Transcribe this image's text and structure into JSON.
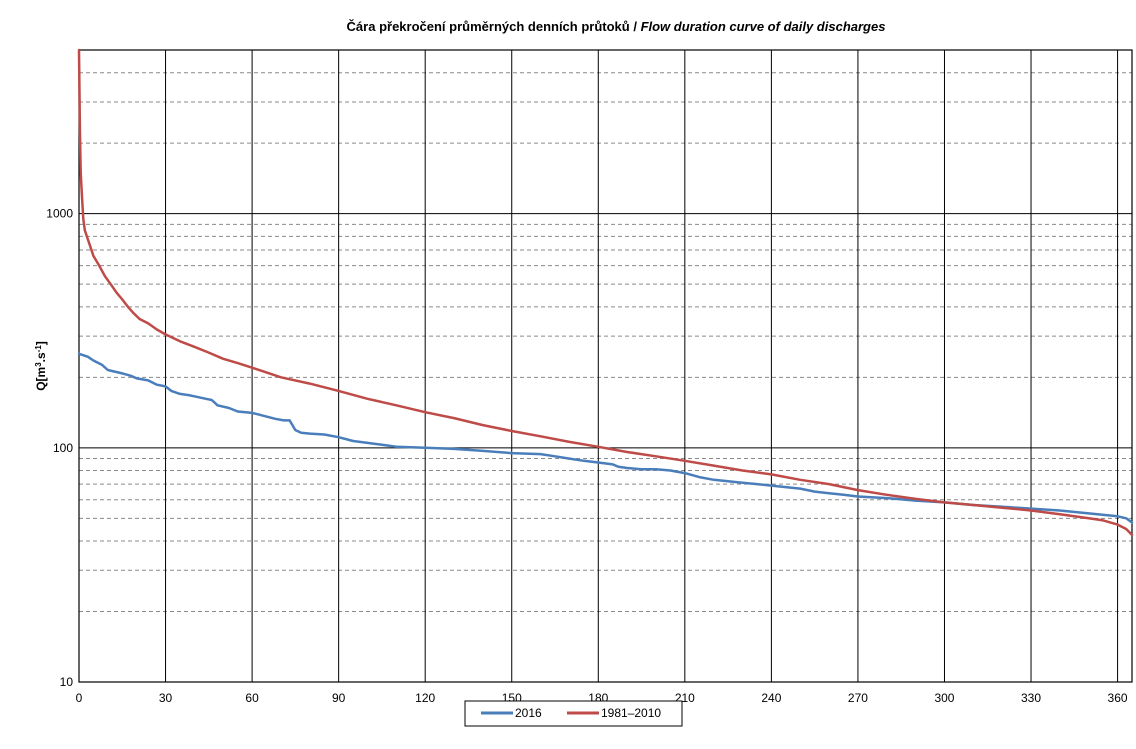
{
  "chart_data": {
    "type": "line",
    "title": {
      "main": "Čára překročení průměrných denních průtoků / ",
      "italic": "Flow duration curve of daily discharges"
    },
    "xlabel": "",
    "ylabel": {
      "prefix": "Q[m",
      "sup1": "3",
      "mid": ".s",
      "sup2": "-1",
      "suffix": "]"
    },
    "xlim": [
      0,
      365
    ],
    "ylim": [
      10,
      5000
    ],
    "y_scale": "log",
    "x_ticks": [
      0,
      30,
      60,
      90,
      120,
      150,
      180,
      210,
      240,
      270,
      300,
      330,
      360
    ],
    "x_tick_labels": [
      "0",
      "30",
      "60",
      "90",
      "120",
      "150",
      "180",
      "210",
      "240",
      "270",
      "300",
      "330",
      "360"
    ],
    "y_major_ticks": [
      10,
      100,
      1000
    ],
    "y_tick_labels": [
      "10",
      "100",
      "1000"
    ],
    "y_minor_ticks": [
      20,
      30,
      40,
      50,
      60,
      70,
      80,
      90,
      200,
      300,
      400,
      500,
      600,
      700,
      800,
      900,
      2000,
      3000,
      4000
    ],
    "grid": {
      "vertical_major": true,
      "horizontal_major": true,
      "horizontal_minor_dashed": true
    },
    "legend_position": "bottom-center",
    "series": [
      {
        "name": "2016",
        "color": "#4a7ebb",
        "points": [
          [
            0,
            252
          ],
          [
            3,
            245
          ],
          [
            5,
            236
          ],
          [
            8,
            226
          ],
          [
            10,
            215
          ],
          [
            12,
            212
          ],
          [
            15,
            208
          ],
          [
            18,
            203
          ],
          [
            20,
            198
          ],
          [
            24,
            194
          ],
          [
            27,
            186
          ],
          [
            30,
            183
          ],
          [
            32,
            175
          ],
          [
            35,
            170
          ],
          [
            38,
            168
          ],
          [
            40,
            166
          ],
          [
            44,
            162
          ],
          [
            46,
            160
          ],
          [
            47,
            156
          ],
          [
            48,
            152
          ],
          [
            52,
            148
          ],
          [
            55,
            143
          ],
          [
            60,
            141
          ],
          [
            62,
            139
          ],
          [
            65,
            136
          ],
          [
            68,
            133
          ],
          [
            71,
            131
          ],
          [
            73,
            131
          ],
          [
            75,
            119
          ],
          [
            77,
            116
          ],
          [
            80,
            115
          ],
          [
            85,
            114
          ],
          [
            90,
            111
          ],
          [
            95,
            107
          ],
          [
            100,
            105
          ],
          [
            105,
            103
          ],
          [
            110,
            101
          ],
          [
            120,
            100
          ],
          [
            130,
            99
          ],
          [
            140,
            97
          ],
          [
            150,
            95
          ],
          [
            160,
            94
          ],
          [
            165,
            92
          ],
          [
            170,
            90
          ],
          [
            175,
            88
          ],
          [
            182,
            86
          ],
          [
            185,
            85
          ],
          [
            187,
            83
          ],
          [
            190,
            82
          ],
          [
            195,
            81
          ],
          [
            200,
            81
          ],
          [
            205,
            80
          ],
          [
            210,
            78
          ],
          [
            215,
            75
          ],
          [
            220,
            73
          ],
          [
            225,
            72
          ],
          [
            230,
            71
          ],
          [
            235,
            70
          ],
          [
            240,
            69
          ],
          [
            245,
            68
          ],
          [
            250,
            67
          ],
          [
            255,
            65
          ],
          [
            260,
            64
          ],
          [
            265,
            63
          ],
          [
            270,
            62
          ],
          [
            280,
            61
          ],
          [
            290,
            59.5
          ],
          [
            300,
            58.5
          ],
          [
            310,
            57
          ],
          [
            320,
            56
          ],
          [
            330,
            55
          ],
          [
            340,
            54
          ],
          [
            350,
            52.5
          ],
          [
            360,
            51
          ],
          [
            363,
            50
          ],
          [
            365,
            48
          ]
        ]
      },
      {
        "name": "1981–2010",
        "color": "#be4b48",
        "points": [
          [
            0,
            5000
          ],
          [
            0.3,
            2300
          ],
          [
            0.6,
            1500
          ],
          [
            1,
            1200
          ],
          [
            1.5,
            950
          ],
          [
            2,
            850
          ],
          [
            3,
            780
          ],
          [
            4,
            720
          ],
          [
            5,
            660
          ],
          [
            7,
            600
          ],
          [
            9,
            540
          ],
          [
            11,
            500
          ],
          [
            13,
            460
          ],
          [
            15,
            430
          ],
          [
            17,
            400
          ],
          [
            19,
            375
          ],
          [
            21,
            355
          ],
          [
            24,
            340
          ],
          [
            27,
            320
          ],
          [
            30,
            305
          ],
          [
            35,
            285
          ],
          [
            40,
            270
          ],
          [
            45,
            255
          ],
          [
            50,
            240
          ],
          [
            55,
            230
          ],
          [
            60,
            220
          ],
          [
            65,
            210
          ],
          [
            70,
            200
          ],
          [
            80,
            188
          ],
          [
            90,
            175
          ],
          [
            100,
            162
          ],
          [
            110,
            152
          ],
          [
            120,
            142
          ],
          [
            130,
            134
          ],
          [
            140,
            125
          ],
          [
            150,
            118
          ],
          [
            160,
            112
          ],
          [
            170,
            106
          ],
          [
            180,
            101
          ],
          [
            190,
            96
          ],
          [
            200,
            92
          ],
          [
            210,
            88
          ],
          [
            220,
            84
          ],
          [
            230,
            80
          ],
          [
            240,
            77
          ],
          [
            250,
            73
          ],
          [
            260,
            70
          ],
          [
            270,
            66
          ],
          [
            280,
            63
          ],
          [
            290,
            60.5
          ],
          [
            300,
            58.5
          ],
          [
            310,
            57
          ],
          [
            320,
            55.5
          ],
          [
            330,
            54
          ],
          [
            340,
            52
          ],
          [
            350,
            50
          ],
          [
            355,
            49
          ],
          [
            360,
            47
          ],
          [
            363,
            45
          ],
          [
            365,
            42.5
          ]
        ]
      }
    ]
  }
}
